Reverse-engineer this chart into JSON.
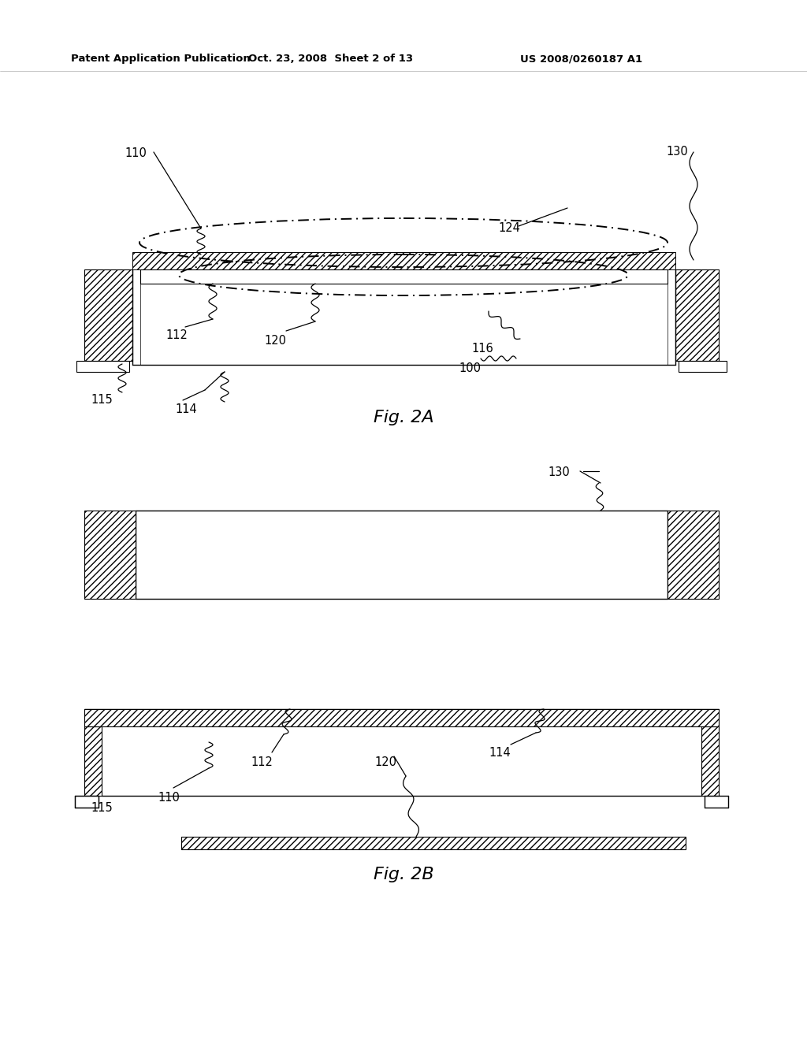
{
  "background_color": "#ffffff",
  "header_left": "Patent Application Publication",
  "header_center": "Oct. 23, 2008  Sheet 2 of 13",
  "header_right": "US 2008/0260187 A1",
  "fig2a_label": "Fig. 2A",
  "fig2b_label": "Fig. 2B"
}
